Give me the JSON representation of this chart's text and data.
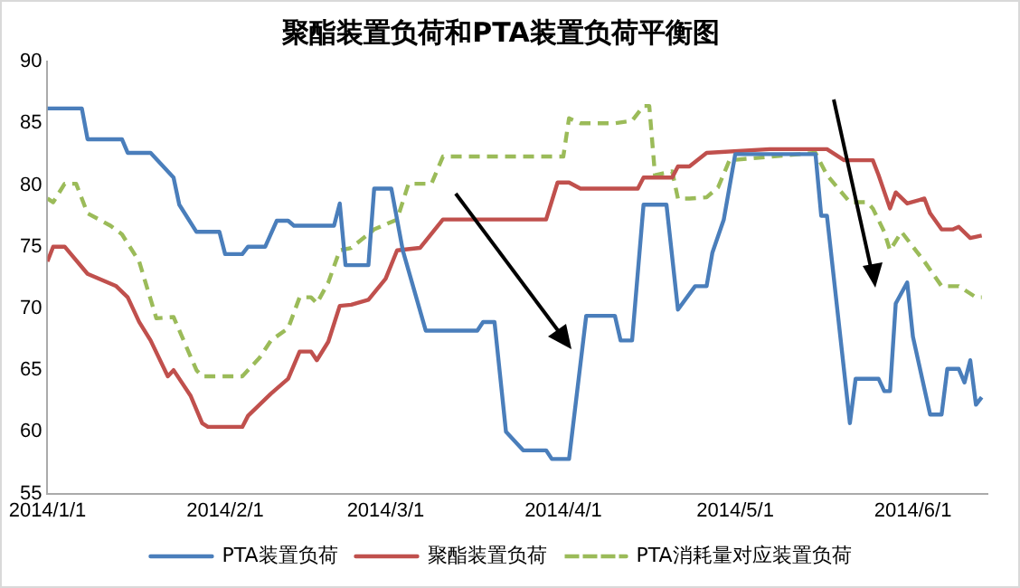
{
  "chart_data": {
    "type": "line",
    "title": "聚酯装置负荷和PTA装置负荷平衡图",
    "marker": "none",
    "grid": false,
    "legend": "bottom",
    "xlim": [
      "2014-01-01",
      "2014-06-14"
    ],
    "xticks": [
      {
        "value": "2014-01-01",
        "label": "2014/1/1"
      },
      {
        "value": "2014-02-01",
        "label": "2014/2/1"
      },
      {
        "value": "2014-03-01",
        "label": "2014/3/1"
      },
      {
        "value": "2014-04-01",
        "label": "2014/4/1"
      },
      {
        "value": "2014-05-01",
        "label": "2014/5/1"
      },
      {
        "value": "2014-06-01",
        "label": "2014/6/1"
      }
    ],
    "ylim": [
      55,
      90
    ],
    "yticks": [
      55,
      60,
      65,
      70,
      75,
      80,
      85,
      90
    ],
    "series": [
      {
        "name": "PTA装置负荷",
        "color": "#4a7ebb",
        "line_style": "solid",
        "x": [
          "2014-01-01",
          "2014-01-07",
          "2014-01-08",
          "2014-01-14",
          "2014-01-15",
          "2014-01-19",
          "2014-01-23",
          "2014-01-24",
          "2014-01-27",
          "2014-01-31",
          "2014-02-01",
          "2014-02-04",
          "2014-02-05",
          "2014-02-08",
          "2014-02-10",
          "2014-02-12",
          "2014-02-13",
          "2014-02-20",
          "2014-02-21",
          "2014-02-22",
          "2014-02-26",
          "2014-02-27",
          "2014-03-02",
          "2014-03-04",
          "2014-03-08",
          "2014-03-17",
          "2014-03-18",
          "2014-03-20",
          "2014-03-22",
          "2014-03-25",
          "2014-03-29",
          "2014-03-30",
          "2014-04-02",
          "2014-04-05",
          "2014-04-10",
          "2014-04-11",
          "2014-04-13",
          "2014-04-15",
          "2014-04-19",
          "2014-04-21",
          "2014-04-24",
          "2014-04-26",
          "2014-04-27",
          "2014-04-29",
          "2014-05-01",
          "2014-05-15",
          "2014-05-16",
          "2014-05-17",
          "2014-05-21",
          "2014-05-22",
          "2014-05-26",
          "2014-05-27",
          "2014-05-28",
          "2014-05-29",
          "2014-05-31",
          "2014-06-01",
          "2014-06-04",
          "2014-06-06",
          "2014-06-07",
          "2014-06-09",
          "2014-06-10",
          "2014-06-11",
          "2014-06-12",
          "2014-06-13"
        ],
        "values": [
          86.2,
          86.2,
          83.7,
          83.7,
          82.6,
          82.6,
          80.6,
          78.4,
          76.2,
          76.2,
          74.4,
          74.4,
          75,
          75,
          77.1,
          77.1,
          76.7,
          76.7,
          78.5,
          73.5,
          73.5,
          79.7,
          79.7,
          74.7,
          68.2,
          68.2,
          68.9,
          68.9,
          60,
          58.5,
          58.5,
          57.8,
          57.8,
          69.4,
          69.4,
          67.4,
          67.4,
          78.4,
          78.4,
          69.9,
          71.8,
          71.8,
          74.5,
          77.2,
          82.5,
          82.5,
          77.5,
          77.5,
          60.7,
          64.3,
          64.3,
          63.3,
          63.3,
          70.4,
          72.1,
          67.7,
          61.4,
          61.4,
          65.1,
          65.1,
          64,
          65.8,
          62.2,
          62.8
        ]
      },
      {
        "name": "聚酯装置负荷",
        "color": "#c0504d",
        "line_style": "solid",
        "x": [
          "2014-01-01",
          "2014-01-02",
          "2014-01-04",
          "2014-01-08",
          "2014-01-13",
          "2014-01-15",
          "2014-01-17",
          "2014-01-19",
          "2014-01-22",
          "2014-01-23",
          "2014-01-26",
          "2014-01-28",
          "2014-01-29",
          "2014-02-04",
          "2014-02-05",
          "2014-02-09",
          "2014-02-12",
          "2014-02-14",
          "2014-02-16",
          "2014-02-17",
          "2014-02-19",
          "2014-02-21",
          "2014-02-23",
          "2014-02-26",
          "2014-03-01",
          "2014-03-03",
          "2014-03-07",
          "2014-03-11",
          "2014-03-29",
          "2014-03-31",
          "2014-04-02",
          "2014-04-04",
          "2014-04-14",
          "2014-04-15",
          "2014-04-20",
          "2014-04-21",
          "2014-04-23",
          "2014-04-26",
          "2014-05-07",
          "2014-05-17",
          "2014-05-20",
          "2014-05-25",
          "2014-05-26",
          "2014-05-28",
          "2014-05-29",
          "2014-05-31",
          "2014-06-03",
          "2014-06-04",
          "2014-06-06",
          "2014-06-08",
          "2014-06-09",
          "2014-06-11",
          "2014-06-13"
        ],
        "values": [
          73.8,
          75,
          75,
          72.8,
          71.8,
          70.9,
          68.9,
          67.4,
          64.5,
          65,
          62.9,
          60.7,
          60.4,
          60.4,
          61.3,
          63.1,
          64.3,
          66.5,
          66.5,
          65.8,
          67.3,
          70.2,
          70.3,
          70.7,
          72.4,
          74.7,
          74.9,
          77.2,
          77.2,
          80.2,
          80.2,
          79.7,
          79.7,
          80.6,
          80.6,
          81.5,
          81.5,
          82.6,
          82.9,
          82.9,
          82,
          82,
          80.8,
          78.1,
          79.4,
          78.5,
          78.9,
          77.7,
          76.4,
          76.4,
          76.6,
          75.7,
          75.9
        ]
      },
      {
        "name": "PTA消耗量对应装置负荷",
        "color": "#9bbb59",
        "line_style": "dashed",
        "x": [
          "2014-01-01",
          "2014-01-02",
          "2014-01-04",
          "2014-01-06",
          "2014-01-08",
          "2014-01-12",
          "2014-01-14",
          "2014-01-17",
          "2014-01-20",
          "2014-01-23",
          "2014-01-27",
          "2014-01-28",
          "2014-02-04",
          "2014-02-07",
          "2014-02-09",
          "2014-02-12",
          "2014-02-14",
          "2014-02-16",
          "2014-02-17",
          "2014-02-19",
          "2014-02-21",
          "2014-02-23",
          "2014-02-27",
          "2014-03-03",
          "2014-03-05",
          "2014-03-09",
          "2014-03-11",
          "2014-04-01",
          "2014-04-02",
          "2014-04-04",
          "2014-04-10",
          "2014-04-13",
          "2014-04-15",
          "2014-04-16",
          "2014-04-17",
          "2014-04-20",
          "2014-04-21",
          "2014-04-23",
          "2014-04-26",
          "2014-04-28",
          "2014-04-30",
          "2014-05-15",
          "2014-05-17",
          "2014-05-21",
          "2014-05-24",
          "2014-05-25",
          "2014-05-27",
          "2014-05-28",
          "2014-05-30",
          "2014-06-03",
          "2014-06-06",
          "2014-06-09",
          "2014-06-12",
          "2014-06-13"
        ],
        "values": [
          78.9,
          78.6,
          80.1,
          80.1,
          77.7,
          76.7,
          76,
          73.8,
          69.2,
          69.3,
          65,
          64.5,
          64.5,
          66,
          67.4,
          68.4,
          70.9,
          70.9,
          70.4,
          72.1,
          74.7,
          74.9,
          76.4,
          77.2,
          80.1,
          80.1,
          82.3,
          82.3,
          85.4,
          85,
          85,
          85.2,
          86.4,
          86.4,
          80.8,
          81.1,
          78.9,
          78.9,
          79,
          79.8,
          82,
          82.6,
          80.8,
          78.6,
          78.6,
          78.1,
          76.2,
          74.7,
          76.2,
          73.8,
          71.8,
          71.8,
          70.9,
          70.9
        ]
      }
    ]
  }
}
